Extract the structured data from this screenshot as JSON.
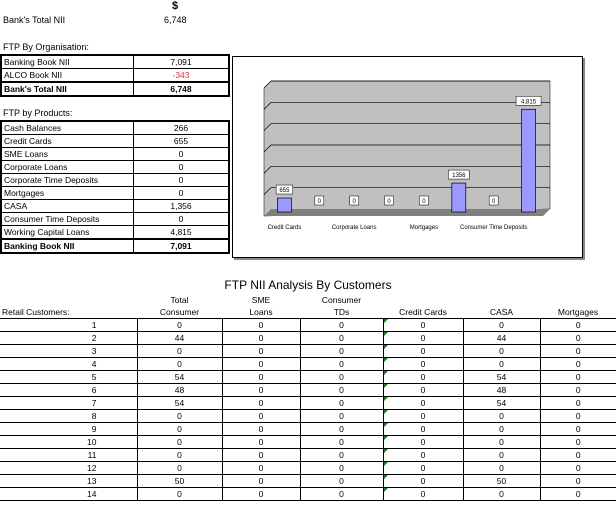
{
  "header": {
    "currency": "$",
    "banks_total_label": "Bank's Total NII",
    "banks_total_value": "6,748"
  },
  "org": {
    "title": "FTP By Organisation:",
    "rows": [
      {
        "label": "Banking Book NII",
        "value": "7,091"
      },
      {
        "label": "ALCO Book NII",
        "value": "-343"
      }
    ],
    "total": {
      "label": "Bank's Total NII",
      "value": "6,748"
    }
  },
  "products": {
    "title": "FTP by Products:",
    "rows": [
      {
        "label": "Cash Balances",
        "value": "266"
      },
      {
        "label": "Credit Cards",
        "value": "655"
      },
      {
        "label": "SME Loans",
        "value": "0"
      },
      {
        "label": "Corporate Loans",
        "value": "0"
      },
      {
        "label": "Corporate Time Deposits",
        "value": "0"
      },
      {
        "label": "Mortgages",
        "value": "0"
      },
      {
        "label": "CASA",
        "value": "1,356"
      },
      {
        "label": "Consumer Time Deposits",
        "value": "0"
      },
      {
        "label": "Working Capital Loans",
        "value": "4,815"
      }
    ],
    "total": {
      "label": "Banking Book NII",
      "value": "7,091"
    }
  },
  "chart_data": {
    "type": "bar",
    "title": "",
    "categories": [
      "Credit Cards",
      "",
      "Corporate Loans",
      "",
      "Mortgages",
      "",
      "Consumer Time Deposits",
      ""
    ],
    "values": [
      655,
      0,
      0,
      0,
      0,
      1356,
      0,
      4815
    ],
    "data_labels": [
      "655",
      "0",
      "0",
      "0",
      "0",
      "1356",
      "0",
      "4,815"
    ],
    "ylim": [
      0,
      6000
    ],
    "grid": true,
    "colors": {
      "bar": "#9999ff",
      "plot_bg": "#c0c0c0"
    }
  },
  "customers": {
    "title": "FTP NII Analysis By Customers",
    "headers": [
      [
        "",
        "Total",
        "SME",
        "Consumer",
        "",
        "",
        ""
      ],
      [
        "Retail Customers:",
        "Consumer",
        "Loans",
        "TDs",
        "Credit Cards",
        "CASA",
        "Mortgages"
      ]
    ],
    "rows": [
      [
        "1",
        "0",
        "0",
        "0",
        "0",
        "0",
        "0"
      ],
      [
        "2",
        "44",
        "0",
        "0",
        "0",
        "44",
        "0"
      ],
      [
        "3",
        "0",
        "0",
        "0",
        "0",
        "0",
        "0"
      ],
      [
        "4",
        "0",
        "0",
        "0",
        "0",
        "0",
        "0"
      ],
      [
        "5",
        "54",
        "0",
        "0",
        "0",
        "54",
        "0"
      ],
      [
        "6",
        "48",
        "0",
        "0",
        "0",
        "48",
        "0"
      ],
      [
        "7",
        "54",
        "0",
        "0",
        "0",
        "54",
        "0"
      ],
      [
        "8",
        "0",
        "0",
        "0",
        "0",
        "0",
        "0"
      ],
      [
        "9",
        "0",
        "0",
        "0",
        "0",
        "0",
        "0"
      ],
      [
        "10",
        "0",
        "0",
        "0",
        "0",
        "0",
        "0"
      ],
      [
        "11",
        "0",
        "0",
        "0",
        "0",
        "0",
        "0"
      ],
      [
        "12",
        "0",
        "0",
        "0",
        "0",
        "0",
        "0"
      ],
      [
        "13",
        "50",
        "0",
        "0",
        "0",
        "50",
        "0"
      ],
      [
        "14",
        "0",
        "0",
        "0",
        "0",
        "0",
        "0"
      ]
    ]
  }
}
